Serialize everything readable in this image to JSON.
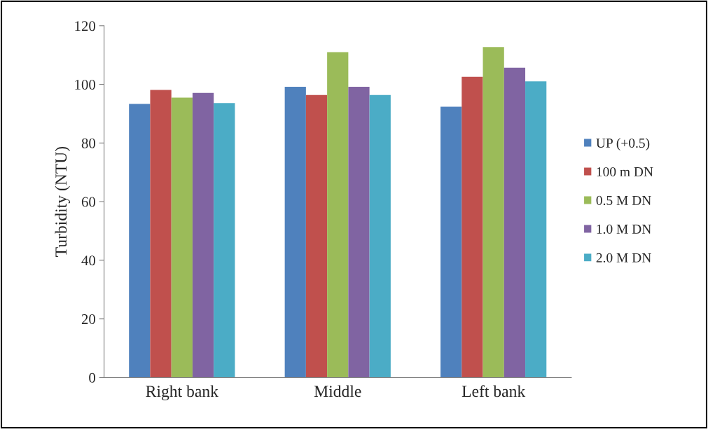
{
  "chart_data": {
    "type": "bar",
    "ylabel": "Turbidity (NTU)",
    "categories": [
      "Right bank",
      "Middle",
      "Left bank"
    ],
    "series": [
      {
        "name": "UP (+0.5)",
        "color": "#4f81bd",
        "values": [
          93.3,
          99.2,
          92.4
        ]
      },
      {
        "name": "100 m DN",
        "color": "#c0504d",
        "values": [
          98.1,
          96.4,
          102.6
        ]
      },
      {
        "name": "0.5 M DN",
        "color": "#9bbb59",
        "values": [
          95.5,
          111,
          112.7
        ]
      },
      {
        "name": "1.0 M DN",
        "color": "#8064a2",
        "values": [
          97.1,
          99.2,
          105.7
        ]
      },
      {
        "name": "2.0 M DN",
        "color": "#4bacc6",
        "values": [
          93.6,
          96.4,
          101
        ]
      }
    ],
    "ylim": [
      0,
      120
    ],
    "yticks": [
      0,
      20,
      40,
      60,
      80,
      100,
      120
    ],
    "grid": false,
    "legend": "right"
  }
}
